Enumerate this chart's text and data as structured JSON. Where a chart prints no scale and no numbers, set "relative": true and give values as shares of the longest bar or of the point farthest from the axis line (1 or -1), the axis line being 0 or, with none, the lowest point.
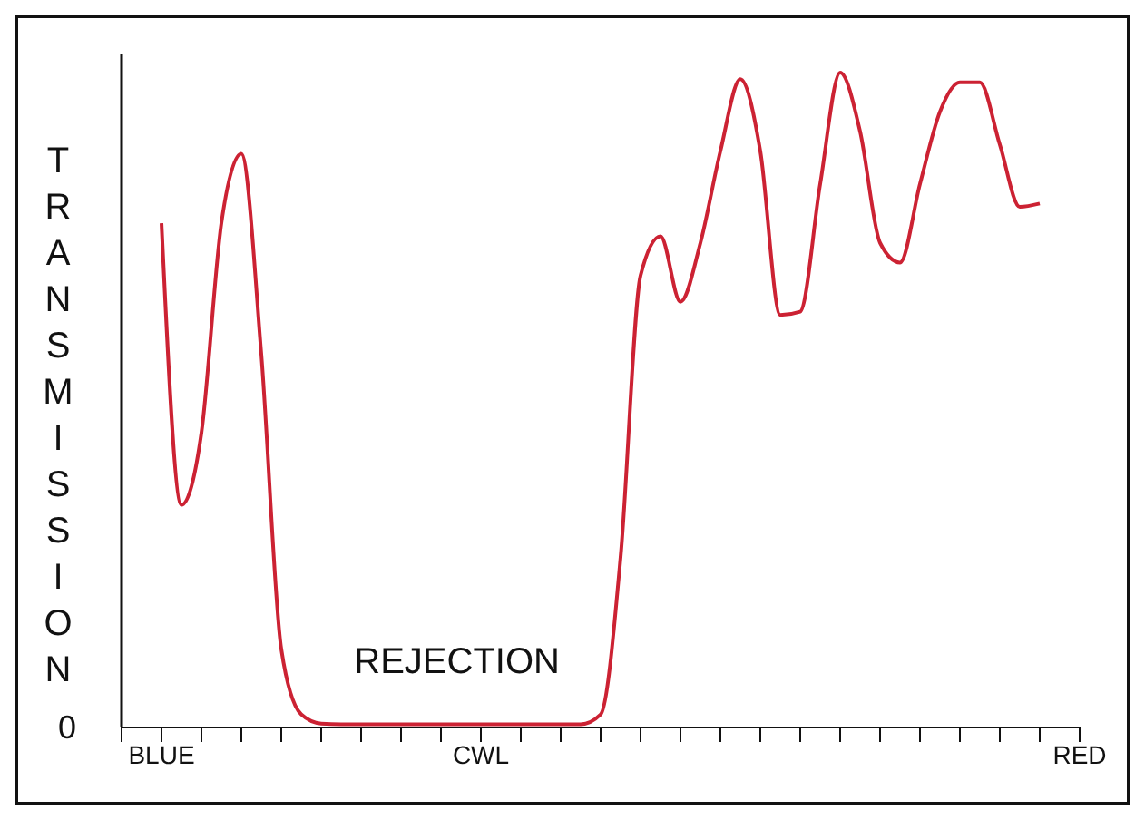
{
  "chart_data": {
    "type": "line",
    "relative": true,
    "ylabel": "TRANSMISSION",
    "annotations": [
      "REJECTION",
      "0"
    ],
    "categories": [
      null,
      null,
      "BLUE",
      null,
      null,
      null,
      null,
      null,
      null,
      null,
      null,
      null,
      null,
      null,
      null,
      null,
      null,
      null,
      "CWL",
      null,
      null,
      null,
      null,
      null,
      null,
      null,
      null,
      null,
      null,
      null,
      null,
      null,
      null,
      null,
      null,
      null,
      null,
      null,
      null,
      null,
      null,
      null,
      null,
      null,
      null,
      null,
      null,
      null,
      "RED"
    ],
    "marker": "none",
    "line_style": "solid",
    "series": [
      {
        "color": "#cc2233",
        "values": [
          null,
          null,
          0.77,
          0.34,
          0.45,
          0.77,
          0.876,
          0.57,
          0.12,
          0.02,
          0.006,
          0.005,
          0.005,
          0.005,
          0.005,
          0.005,
          0.005,
          0.005,
          0.005,
          0.005,
          0.005,
          0.005,
          0.005,
          0.005,
          0.02,
          0.26,
          0.69,
          0.75,
          0.65,
          0.74,
          0.88,
          0.99,
          0.88,
          0.63,
          0.635,
          0.83,
          1,
          0.91,
          0.74,
          0.71,
          0.83,
          0.94,
          0.985,
          0.985,
          0.89,
          0.795,
          0.8,
          null,
          null
        ]
      }
    ]
  }
}
